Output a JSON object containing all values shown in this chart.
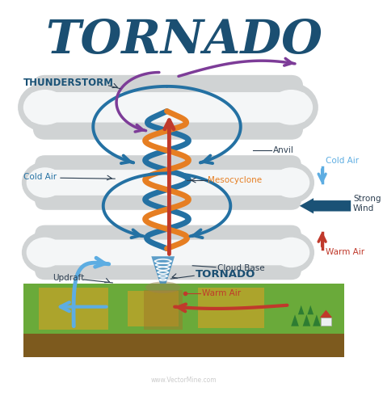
{
  "title": "TORNADO",
  "title_color": "#1b4f72",
  "title_fontsize": 42,
  "background_color": "#ffffff",
  "labels": {
    "thunderstorm": "THUNDERSTORM",
    "anvil": "Anvil",
    "cold_air_left": "Cold Air",
    "cold_air_right": "Cold Air",
    "mesocyclone": "Mesocyclone",
    "cloud_base": "Cloud Base",
    "updraft": "Updraft",
    "tornado": "TORNADO",
    "warm_air_bottom": "Warm Air",
    "warm_air_right": "Warm Air",
    "strong_wind": "Strong\nWind"
  },
  "colors": {
    "cloud_outer": "#b8babb",
    "cloud_mid": "#d0d3d4",
    "cloud_inner": "#e8eaeb",
    "cloud_white": "#f4f6f7",
    "blue_spiral": "#2471a3",
    "orange_spiral": "#e67e22",
    "purple_arrow": "#7d3c98",
    "red_arrow": "#c0392b",
    "cyan_arrow": "#5dade2",
    "teal_arrow": "#1a5276",
    "ground_green1": "#6aaa3a",
    "ground_green2": "#5d9e30",
    "ground_yellow": "#c9a227",
    "ground_brown": "#7d5a1e",
    "ground_dark": "#a07828",
    "tornado_blue": "#2980b9",
    "label_mesocyclone": "#e67e22",
    "label_tornado_color": "#1b4f72",
    "label_warm_air": "#c0392b",
    "label_cold_air": "#2471a3",
    "label_black": "#2c3e50"
  },
  "watermark": "www.VectorMine.com"
}
